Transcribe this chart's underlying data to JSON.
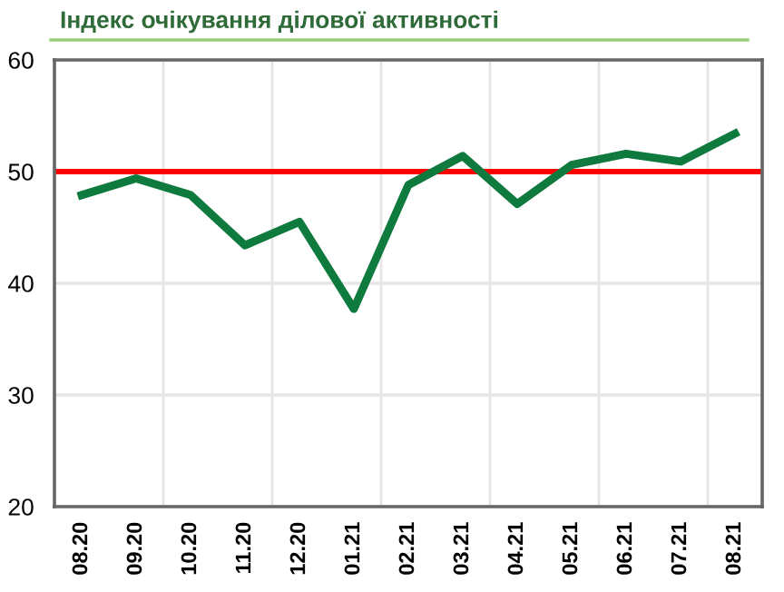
{
  "chart_data": {
    "type": "line",
    "title": "Індекс очікування ділової активності",
    "categories": [
      "08.20",
      "09.20",
      "10.20",
      "11.20",
      "12.20",
      "01.21",
      "02.21",
      "03.21",
      "04.21",
      "05.21",
      "06.21",
      "07.21",
      "08.21"
    ],
    "series": [
      {
        "color": "#0f7a3e",
        "values": [
          47.9,
          49.4,
          47.9,
          43.4,
          45.5,
          37.7,
          48.8,
          51.4,
          47.1,
          50.6,
          51.6,
          50.9,
          53.4
        ]
      }
    ],
    "ylim": [
      20,
      60
    ],
    "yticks": [
      20,
      30,
      40,
      50,
      60
    ],
    "grid": true,
    "ref_lines": [
      {
        "axis": "y",
        "value": 50,
        "color": "#ff0000"
      }
    ]
  }
}
